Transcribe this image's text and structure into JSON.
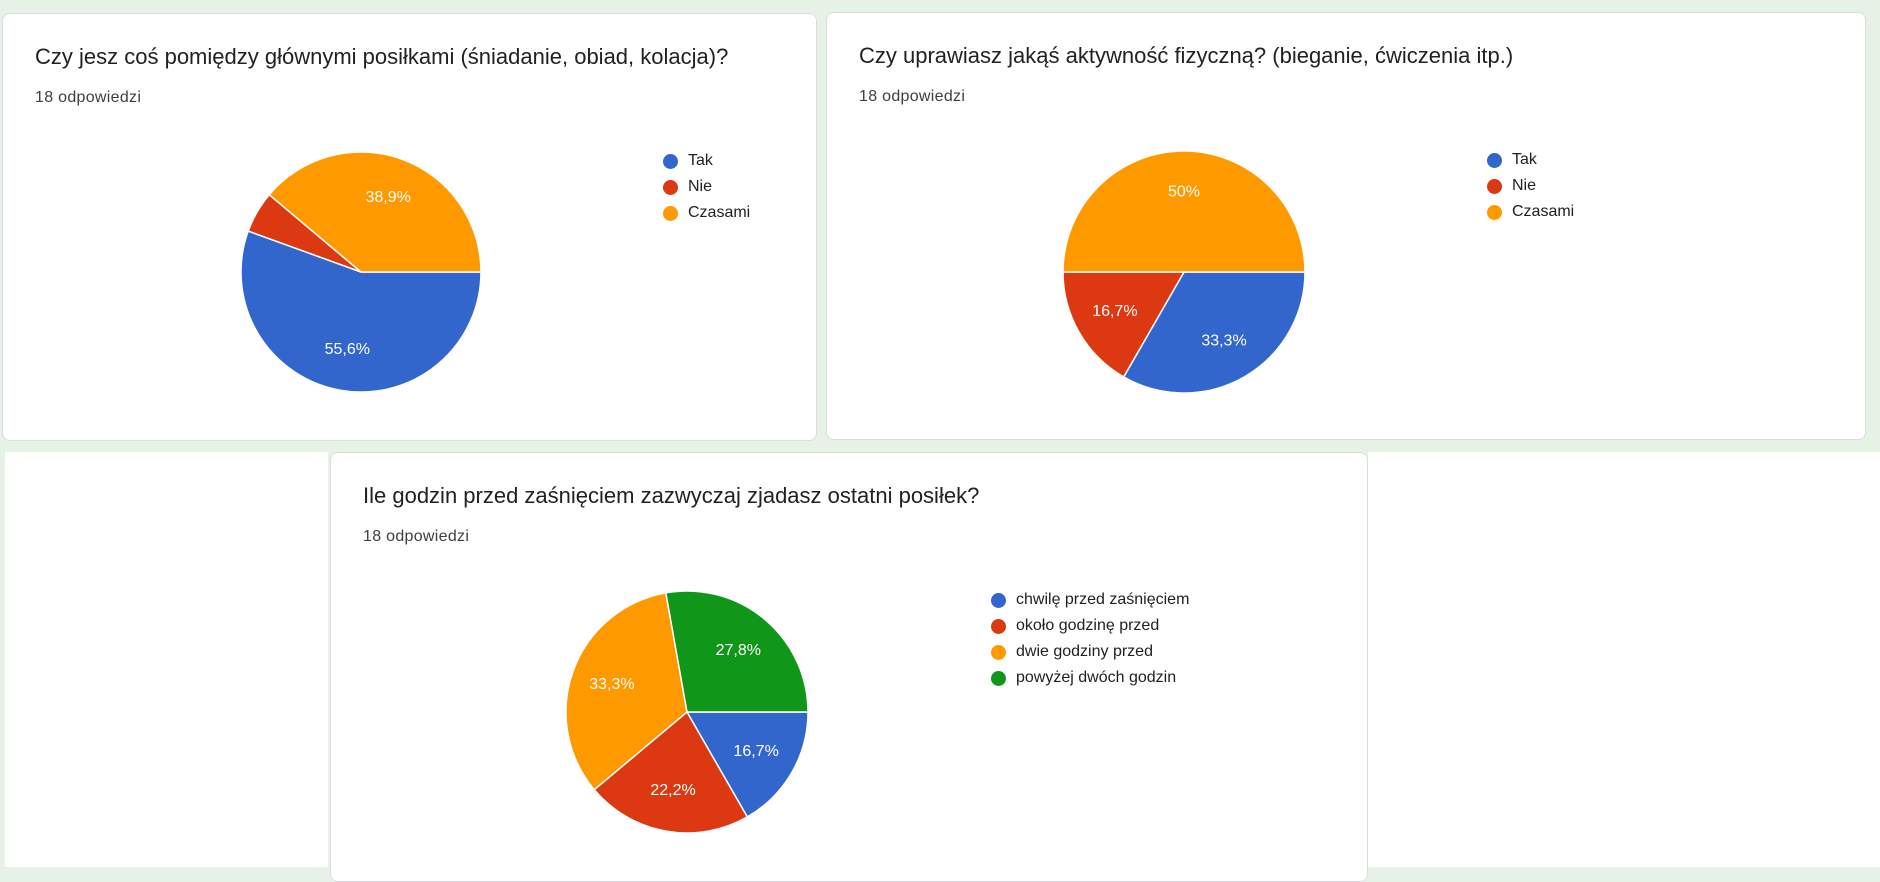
{
  "colors": {
    "blue": "#3366cc",
    "red": "#dc3912",
    "orange": "#ff9900",
    "green": "#109618"
  },
  "response_count_label": "18 odpowiedzi",
  "chart_data": [
    {
      "type": "pie",
      "title": "Czy jesz coś pomiędzy głównymi posiłkami (śniadanie, obiad, kolacja)?",
      "slices": [
        {
          "label": "Tak",
          "percent": 55.6,
          "color": "#3366cc",
          "value_label": "55,6%"
        },
        {
          "label": "Nie",
          "percent": 5.6,
          "color": "#dc3912",
          "value_label": ""
        },
        {
          "label": "Czasami",
          "percent": 38.9,
          "color": "#ff9900",
          "value_label": "38,9%"
        }
      ],
      "legend": "right"
    },
    {
      "type": "pie",
      "title": "Czy uprawiasz jakąś aktywność fizyczną? (bieganie, ćwiczenia itp.)",
      "slices": [
        {
          "label": "Tak",
          "percent": 33.3,
          "color": "#3366cc",
          "value_label": "33,3%"
        },
        {
          "label": "Nie",
          "percent": 16.7,
          "color": "#dc3912",
          "value_label": "16,7%"
        },
        {
          "label": "Czasami",
          "percent": 50,
          "color": "#ff9900",
          "value_label": "50%"
        }
      ],
      "legend": "right"
    },
    {
      "type": "pie",
      "title": "Ile godzin przed zaśnięciem zazwyczaj zjadasz ostatni posiłek?",
      "slices": [
        {
          "label": "chwilę przed zaśnięciem",
          "percent": 16.7,
          "color": "#3366cc",
          "value_label": "16,7%"
        },
        {
          "label": "około godzinę przed",
          "percent": 22.2,
          "color": "#dc3912",
          "value_label": "22,2%"
        },
        {
          "label": "dwie godziny przed",
          "percent": 33.3,
          "color": "#ff9900",
          "value_label": "33,3%"
        },
        {
          "label": "powyżej dwóch godzin",
          "percent": 27.8,
          "color": "#109618",
          "value_label": "27,8%"
        }
      ],
      "legend": "right"
    }
  ]
}
